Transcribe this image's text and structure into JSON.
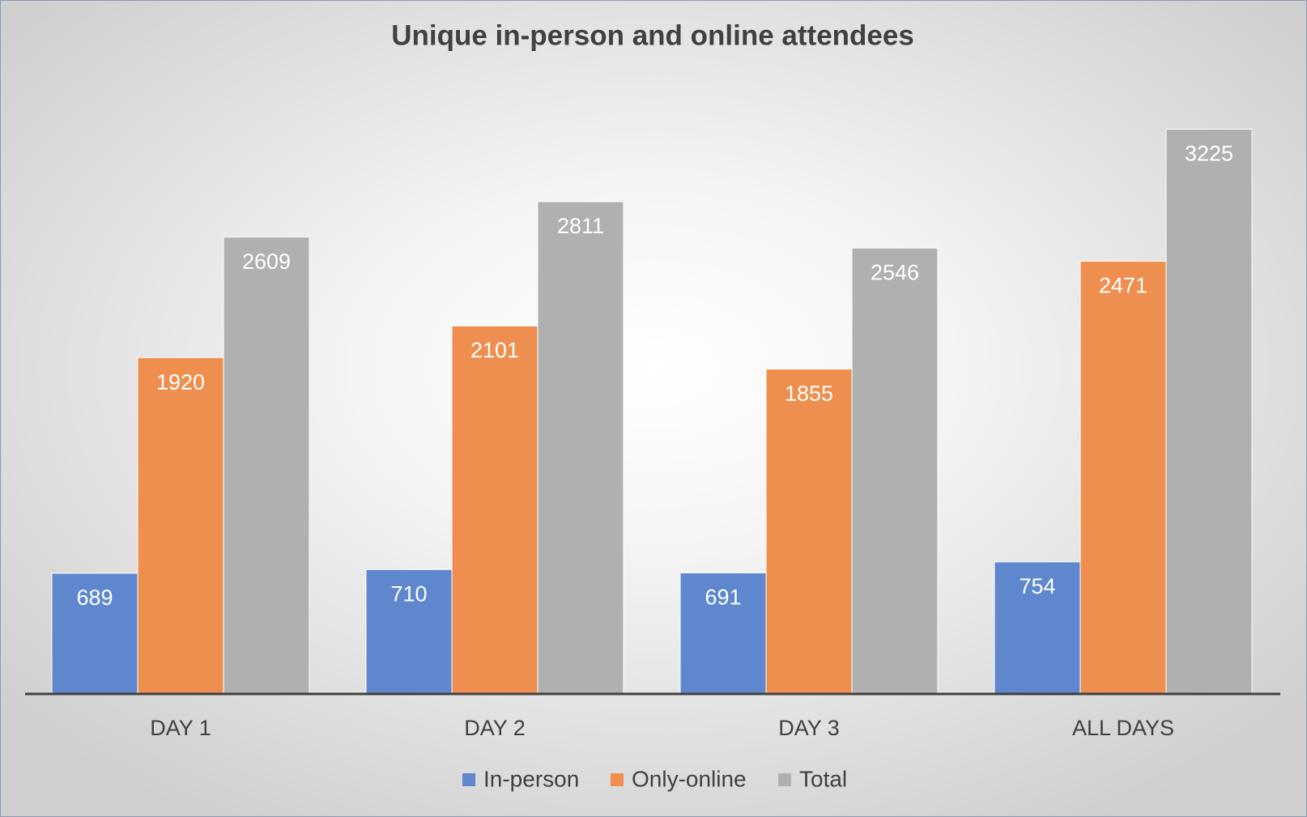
{
  "chart_data": {
    "type": "bar",
    "title": "Unique in-person and online attendees",
    "categories": [
      "DAY 1",
      "DAY 2",
      "DAY 3",
      "ALL DAYS"
    ],
    "series": [
      {
        "name": "In-person",
        "color": "#5f87cd",
        "values": [
          689,
          710,
          691,
          754
        ]
      },
      {
        "name": "Only-online",
        "color": "#ef8f4f",
        "values": [
          1920,
          2101,
          1855,
          2471
        ]
      },
      {
        "name": "Total",
        "color": "#b0b0b0",
        "values": [
          2609,
          2811,
          2546,
          3225
        ]
      }
    ],
    "ylim": [
      0,
      3500
    ],
    "legend": "bottom"
  }
}
